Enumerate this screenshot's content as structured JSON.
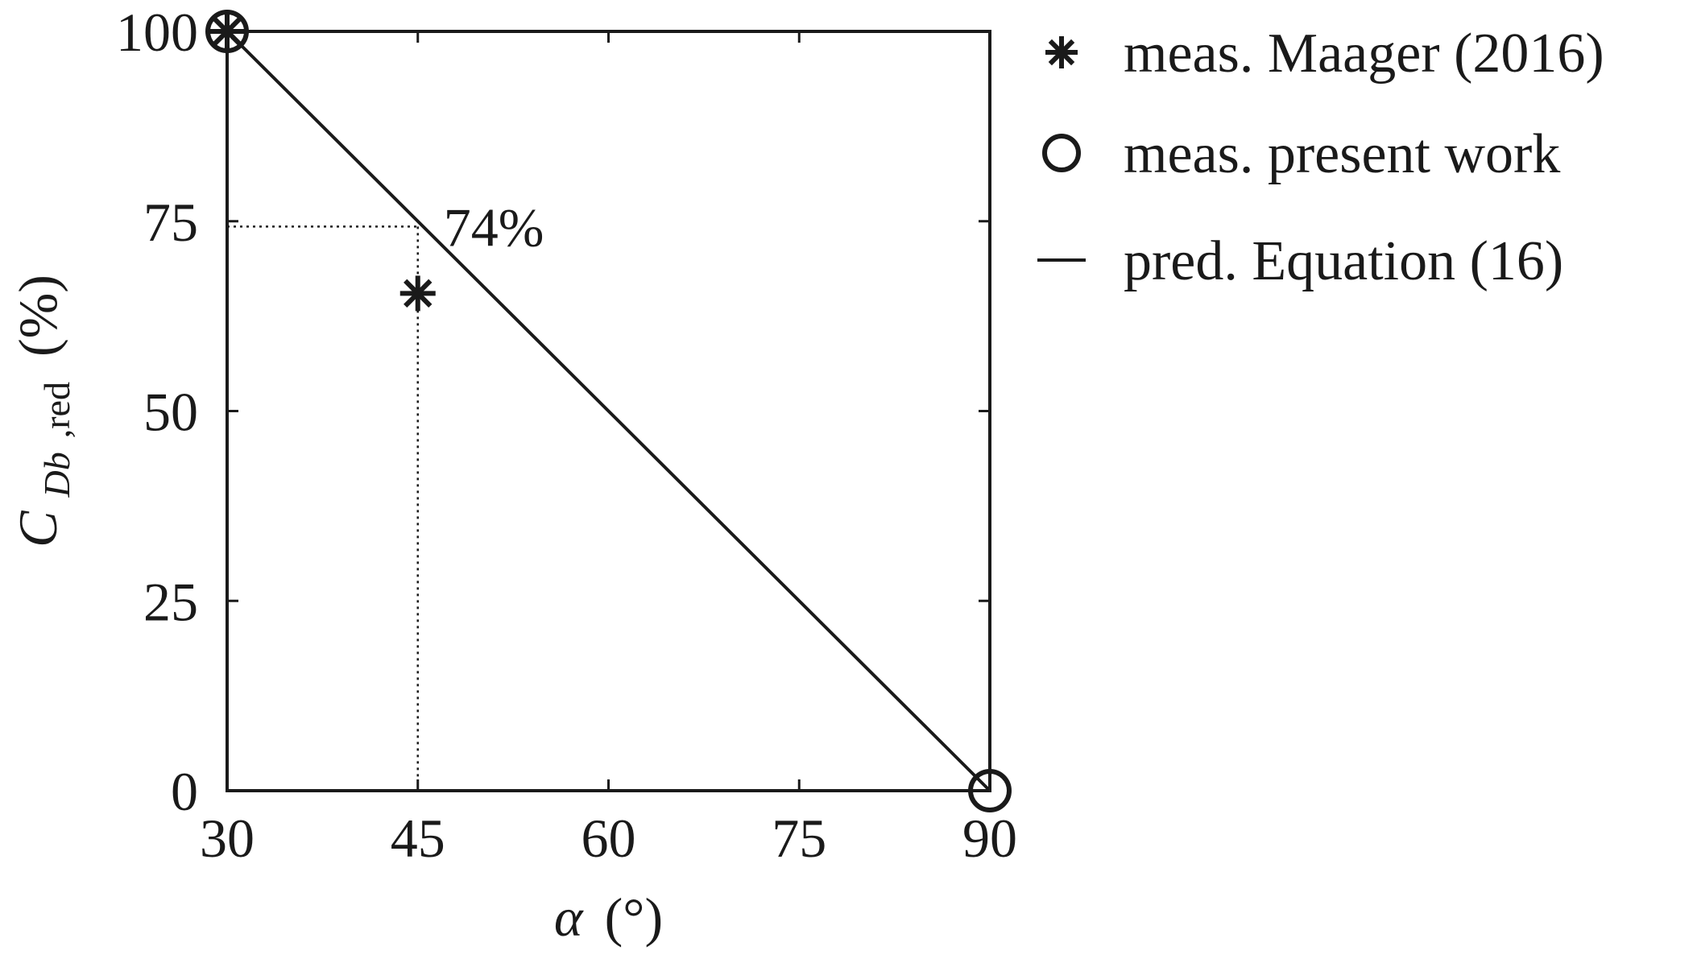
{
  "chart_data": {
    "type": "scatter",
    "title": "",
    "xlabel": {
      "symbol": "α",
      "unit": "(°)"
    },
    "ylabel": {
      "base": "C",
      "subscript_italic": "Db",
      "subscript_roman": ",red",
      "unit": "(%)"
    },
    "xlim": [
      30,
      90
    ],
    "ylim": [
      0,
      100
    ],
    "xticks": [
      "30",
      "45",
      "60",
      "75",
      "90"
    ],
    "yticks": [
      "0",
      "25",
      "50",
      "75",
      "100"
    ],
    "grid": false,
    "legend_position": "right",
    "series": [
      {
        "name": "meas. Maager (2016)",
        "marker": "asterisk",
        "points": [
          [
            30,
            100
          ],
          [
            45,
            65.5
          ]
        ]
      },
      {
        "name": "meas. present work",
        "marker": "circle",
        "points": [
          [
            30,
            100
          ],
          [
            90,
            0
          ]
        ]
      },
      {
        "name": "pred. Equation (16)",
        "marker": "line",
        "points": [
          [
            30,
            100
          ],
          [
            90,
            0
          ]
        ]
      }
    ],
    "annotation": {
      "text": "74%",
      "x": 45,
      "y": 74.3
    }
  }
}
